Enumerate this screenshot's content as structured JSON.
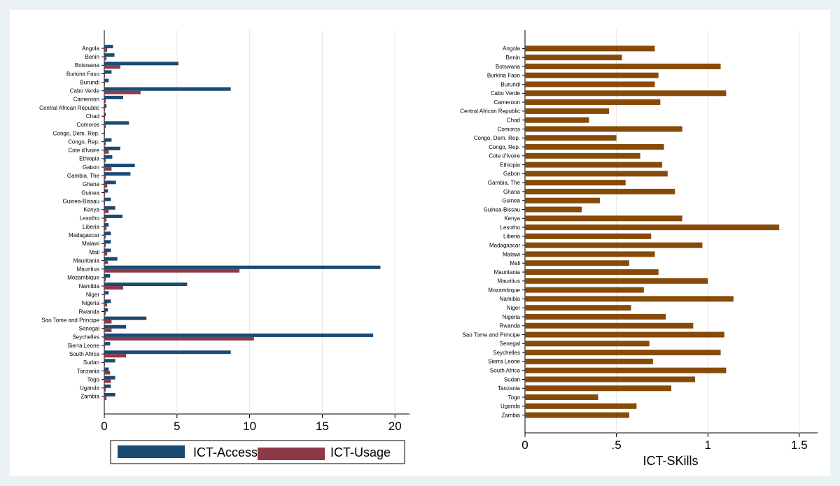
{
  "chart_data": [
    {
      "type": "bar",
      "orientation": "horizontal",
      "categories": [
        "Angola",
        "Benin",
        "Botswana",
        "Burkina Faso",
        "Burundi",
        "Cabo Verde",
        "Cameroon",
        "Central African Republic",
        "Chad",
        "Comoros",
        "Congo, Dem. Rep.",
        "Congo, Rep.",
        "Cote d'Ivoire",
        "Ethiopia",
        "Gabon",
        "Gambia, The",
        "Ghana",
        "Guinea",
        "Guinea-Bissau",
        "Kenya",
        "Lesotho",
        "Liberia",
        "Madagascar",
        "Malawi",
        "Mali",
        "Mauritania",
        "Mauritius",
        "Mozambique",
        "Namibia",
        "Niger",
        "Nigeria",
        "Rwanda",
        "Sao Tome and Principe",
        "Senegal",
        "Seychelles",
        "Sierra Leone",
        "South Africa",
        "Sudan",
        "Tanzania",
        "Togo",
        "Uganda",
        "Zambia"
      ],
      "series": [
        {
          "name": "ICT-Access",
          "color": "#1b4a72",
          "values": [
            0.6,
            0.7,
            5.1,
            0.5,
            0.3,
            8.7,
            1.3,
            0.15,
            0.1,
            1.7,
            0.05,
            0.5,
            1.1,
            0.55,
            2.1,
            1.8,
            0.8,
            0.25,
            0.45,
            0.75,
            1.25,
            0.3,
            0.45,
            0.45,
            0.45,
            0.9,
            19.0,
            0.4,
            5.7,
            0.3,
            0.45,
            0.25,
            2.9,
            1.5,
            18.5,
            0.4,
            8.7,
            0.75,
            0.3,
            0.75,
            0.45,
            0.75
          ]
        },
        {
          "name": "ICT-Usage",
          "color": "#8e3a46",
          "values": [
            0.2,
            0.15,
            1.1,
            0.05,
            0.05,
            2.5,
            0.1,
            0.05,
            0.05,
            0.1,
            0.05,
            0.1,
            0.3,
            0.1,
            0.5,
            0.1,
            0.2,
            0.05,
            0.05,
            0.3,
            0.15,
            0.15,
            0.1,
            0.1,
            0.2,
            0.25,
            9.3,
            0.1,
            1.3,
            0.05,
            0.2,
            0.1,
            0.5,
            0.5,
            10.3,
            0.05,
            1.5,
            0.05,
            0.4,
            0.45,
            0.1,
            0.15
          ]
        }
      ],
      "xlim": [
        0,
        21
      ],
      "xticks": [
        "0",
        "5",
        "10",
        "15",
        "20"
      ],
      "xtick_values": [
        0,
        5,
        10,
        15,
        20
      ],
      "xlabel": "",
      "legend": {
        "position": "bottom",
        "entries": [
          "ICT-Access",
          "ICT-Usage"
        ]
      }
    },
    {
      "type": "bar",
      "orientation": "horizontal",
      "categories": [
        "Angola",
        "Benin",
        "Botswana",
        "Burkina Faso",
        "Burundi",
        "Cabo Verde",
        "Cameroon",
        "Central African Republic",
        "Chad",
        "Comoros",
        "Congo, Dem. Rep.",
        "Congo, Rep.",
        "Cote d'Ivoire",
        "Ethiopia",
        "Gabon",
        "Gambia, The",
        "Ghana",
        "Guinea",
        "Guinea-Bissau",
        "Kenya",
        "Lesotho",
        "Liberia",
        "Madagascar",
        "Malawi",
        "Mali",
        "Mauritania",
        "Mauritius",
        "Mozambique",
        "Namibia",
        "Niger",
        "Nigeria",
        "Rwanda",
        "Sao Tome and Principe",
        "Senegal",
        "Seychelles",
        "Sierra Leone",
        "South Africa",
        "Sudan",
        "Tanzania",
        "Togo",
        "Uganda",
        "Zambia"
      ],
      "series": [
        {
          "name": "ICT-SKills",
          "color": "#874a08",
          "values": [
            0.71,
            0.53,
            1.07,
            0.73,
            0.71,
            1.1,
            0.74,
            0.46,
            0.35,
            0.86,
            0.5,
            0.76,
            0.63,
            0.75,
            0.78,
            0.55,
            0.82,
            0.41,
            0.31,
            0.86,
            1.39,
            0.69,
            0.97,
            0.71,
            0.57,
            0.73,
            1.0,
            0.65,
            1.14,
            0.58,
            0.77,
            0.92,
            1.09,
            0.68,
            1.07,
            0.7,
            1.1,
            0.93,
            0.8,
            0.4,
            0.61,
            0.57
          ]
        }
      ],
      "xlim": [
        0,
        1.6
      ],
      "xticks": [
        "0",
        ".5",
        "1",
        "1.5"
      ],
      "xtick_values": [
        0,
        0.5,
        1,
        1.5
      ],
      "xlabel": "ICT-SKills"
    }
  ]
}
